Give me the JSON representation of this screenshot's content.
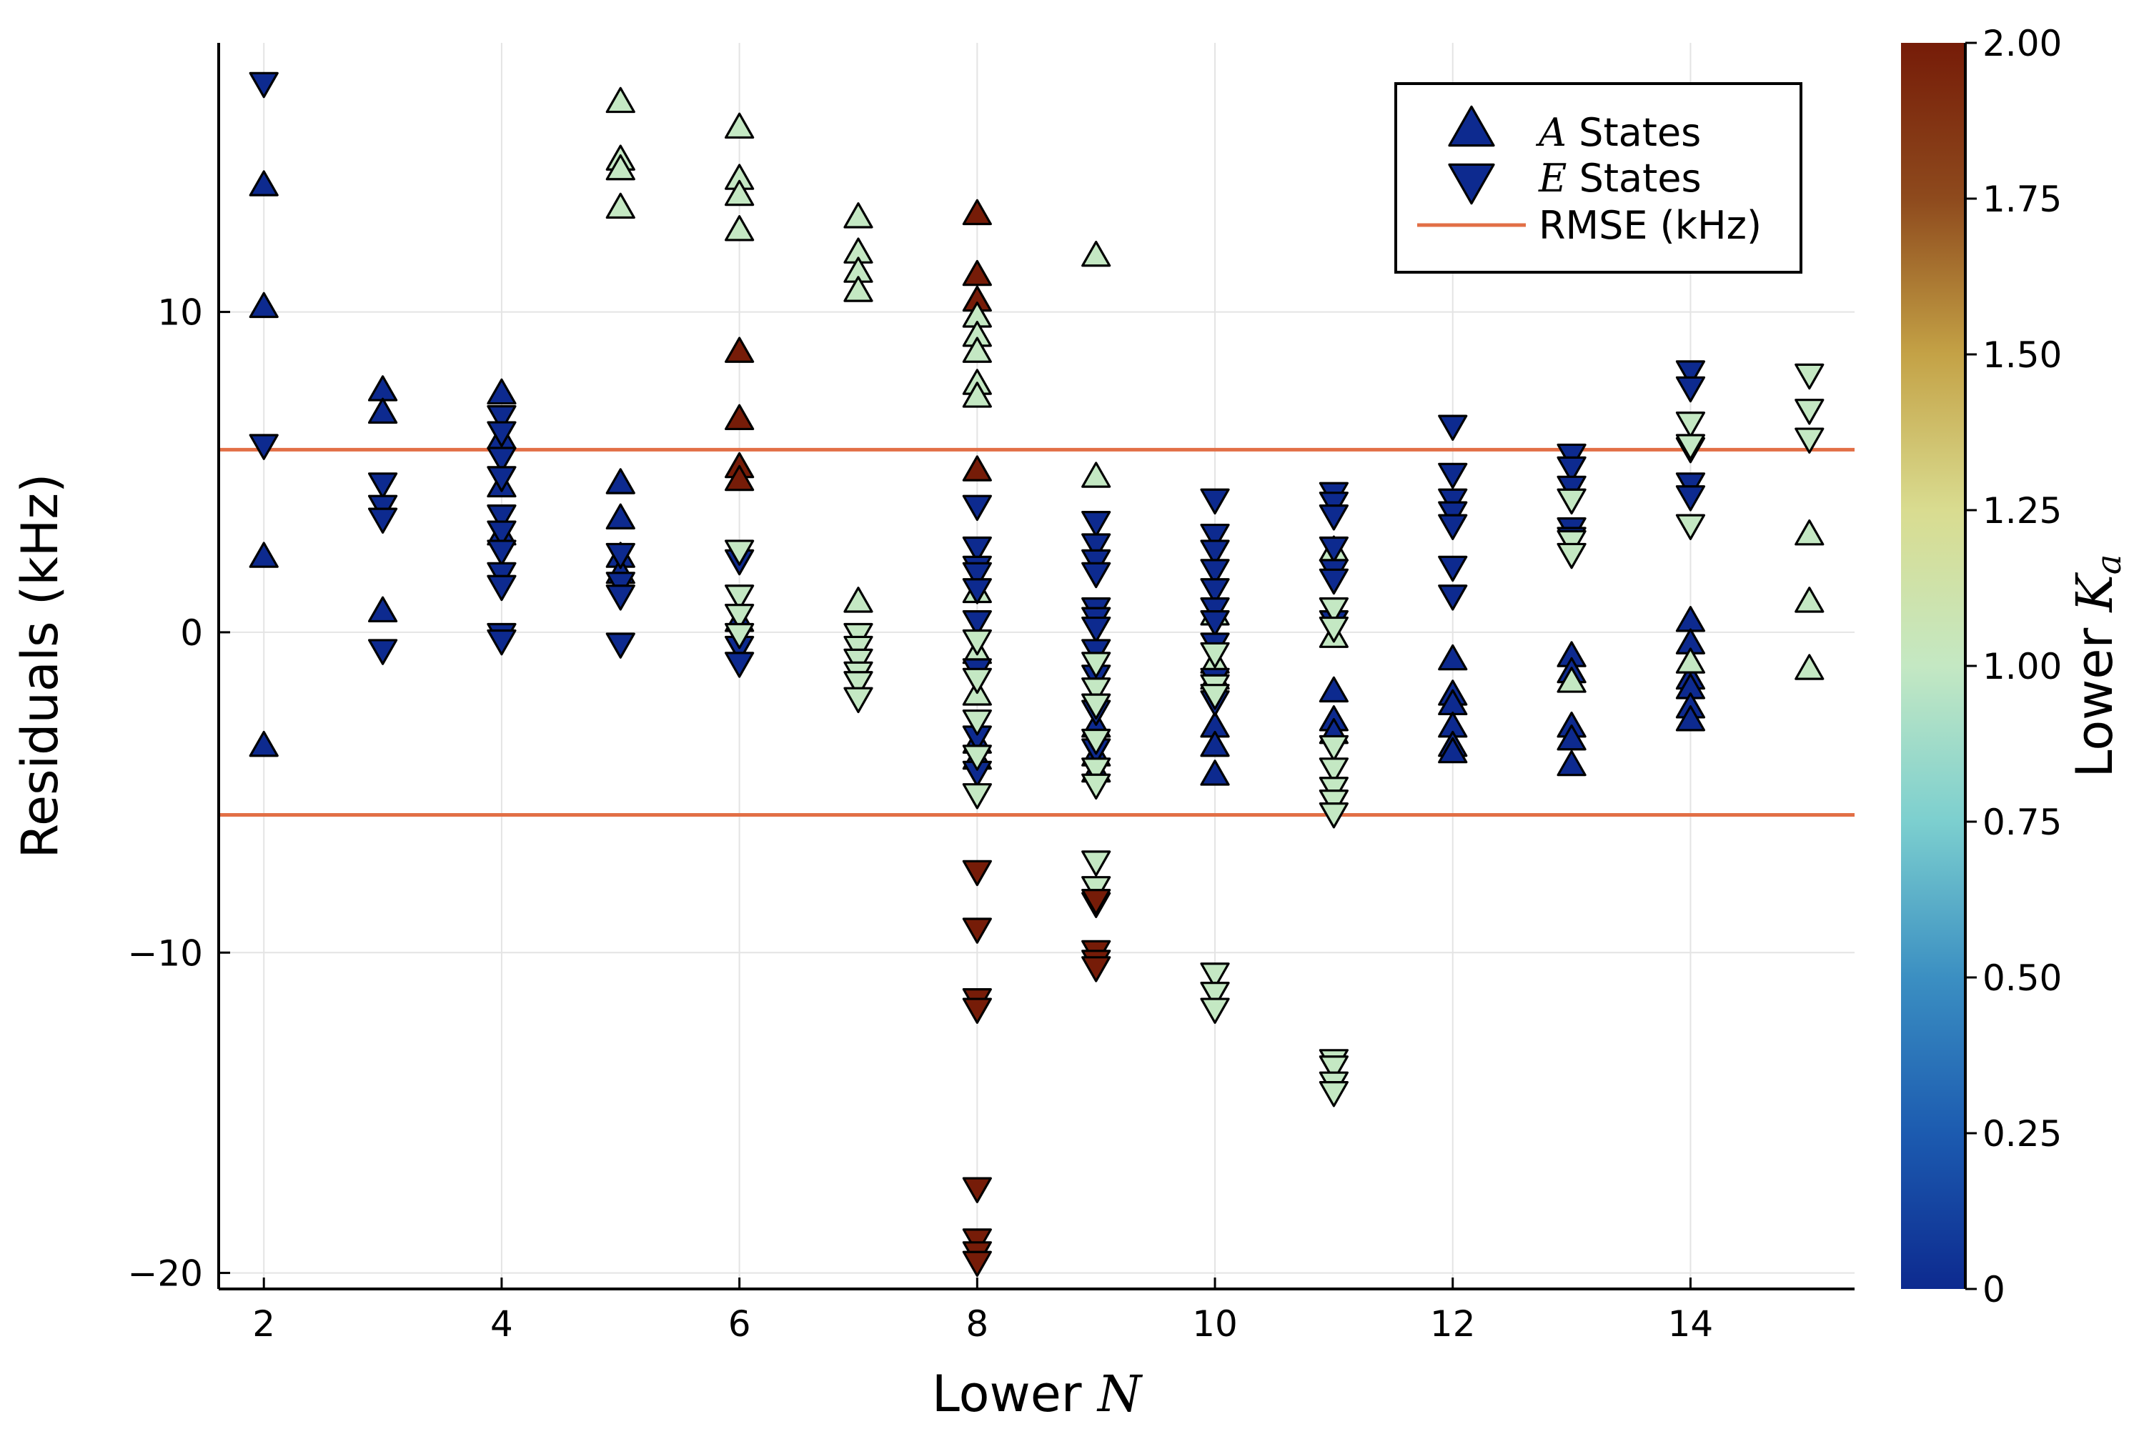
{
  "chart_data": {
    "type": "scatter",
    "xlabel": "Lower",
    "xlabel_var": "N",
    "ylabel": "Residuals (kHz)",
    "xlim": [
      1.62,
      15.38
    ],
    "ylim": [
      -20.5,
      18.4
    ],
    "xticks": [
      2,
      4,
      6,
      8,
      10,
      12,
      14
    ],
    "yticks": [
      -20,
      -10,
      0,
      10
    ],
    "xtick_labels": [
      "2",
      "4",
      "6",
      "8",
      "10",
      "12",
      "14"
    ],
    "ytick_labels": [
      "−20",
      "−10",
      "0",
      "10"
    ],
    "grid": true,
    "legend_position": "top-right",
    "rmse": {
      "label": "RMSE (kHz)",
      "value": 5.7,
      "color": "#e26f46"
    },
    "colorbar": {
      "label": "Lower",
      "label_var": "K",
      "label_sub": "a",
      "range": [
        0,
        2
      ],
      "ticks": [
        0,
        0.25,
        0.5,
        0.75,
        1.0,
        1.25,
        1.5,
        1.75,
        2.0
      ],
      "tick_labels": [
        "0",
        "0.25",
        "0.50",
        "0.75",
        "1.00",
        "1.25",
        "1.50",
        "1.75",
        "2.00"
      ],
      "colors": [
        "#0d2a8f",
        "#1c5bb0",
        "#3b8fc2",
        "#7ccfcf",
        "#c4e8c3",
        "#d9dc90",
        "#c4a246",
        "#8e4a1d",
        "#761c08"
      ]
    },
    "series": [
      {
        "name": "A States",
        "name_var": "A",
        "name_rest": " States",
        "marker": "triangle-up",
        "points": [
          [
            2,
            13.9,
            0
          ],
          [
            2,
            10.1,
            0
          ],
          [
            2,
            2.3,
            0
          ],
          [
            2,
            -3.6,
            0
          ],
          [
            3,
            7.5,
            0
          ],
          [
            3,
            6.8,
            0
          ],
          [
            3,
            0.6,
            0
          ],
          [
            4,
            7.4,
            0
          ],
          [
            4,
            6.0,
            0
          ],
          [
            4,
            4.5,
            0
          ],
          [
            4,
            3.0,
            0
          ],
          [
            5,
            4.6,
            0
          ],
          [
            5,
            3.5,
            0
          ],
          [
            5,
            2.3,
            0
          ],
          [
            5,
            1.8,
            0
          ],
          [
            5,
            16.5,
            1
          ],
          [
            5,
            14.7,
            1
          ],
          [
            5,
            14.4,
            1
          ],
          [
            5,
            13.2,
            1
          ],
          [
            6,
            0.3,
            0
          ],
          [
            6,
            15.7,
            1
          ],
          [
            6,
            14.1,
            1
          ],
          [
            6,
            13.6,
            1
          ],
          [
            6,
            12.5,
            1
          ],
          [
            6,
            8.7,
            2
          ],
          [
            6,
            6.6,
            2
          ],
          [
            6,
            5.1,
            2
          ],
          [
            6,
            4.7,
            2
          ],
          [
            7,
            12.9,
            1
          ],
          [
            7,
            11.8,
            1
          ],
          [
            7,
            11.2,
            1
          ],
          [
            7,
            10.6,
            1
          ],
          [
            7,
            0.9,
            1
          ],
          [
            8,
            13.0,
            2
          ],
          [
            8,
            11.1,
            2
          ],
          [
            8,
            10.3,
            2
          ],
          [
            8,
            5.0,
            2
          ],
          [
            8,
            9.8,
            1
          ],
          [
            8,
            9.2,
            1
          ],
          [
            8,
            8.7,
            1
          ],
          [
            8,
            7.7,
            1
          ],
          [
            8,
            7.3,
            1
          ],
          [
            8,
            1.2,
            1
          ],
          [
            8,
            -0.7,
            1
          ],
          [
            8,
            -2.0,
            1
          ],
          [
            8,
            -3.5,
            0
          ],
          [
            8,
            -4.0,
            0
          ],
          [
            9,
            11.7,
            1
          ],
          [
            9,
            4.8,
            1
          ],
          [
            9,
            -3.0,
            0
          ],
          [
            9,
            -3.9,
            0
          ],
          [
            9,
            -4.4,
            0
          ],
          [
            10,
            -1.5,
            0
          ],
          [
            10,
            -3.0,
            0
          ],
          [
            10,
            -3.6,
            0
          ],
          [
            10,
            -4.5,
            0
          ],
          [
            10,
            0.5,
            1
          ],
          [
            10,
            -1.0,
            1
          ],
          [
            11,
            -1.9,
            0
          ],
          [
            11,
            -2.8,
            0
          ],
          [
            11,
            -3.2,
            0
          ],
          [
            11,
            2.5,
            1
          ],
          [
            11,
            -0.2,
            1
          ],
          [
            12,
            -0.9,
            0
          ],
          [
            12,
            -2.0,
            0
          ],
          [
            12,
            -2.3,
            0
          ],
          [
            12,
            -3.0,
            0
          ],
          [
            12,
            -3.6,
            0
          ],
          [
            12,
            -3.8,
            0
          ],
          [
            13,
            -0.8,
            0
          ],
          [
            13,
            -1.3,
            0
          ],
          [
            13,
            -3.0,
            0
          ],
          [
            13,
            -3.4,
            0
          ],
          [
            13,
            -4.2,
            0
          ],
          [
            13,
            -1.6,
            1
          ],
          [
            14,
            0.3,
            0
          ],
          [
            14,
            -0.4,
            0
          ],
          [
            14,
            -1.5,
            0
          ],
          [
            14,
            -1.8,
            0
          ],
          [
            14,
            -2.4,
            0
          ],
          [
            14,
            -2.8,
            0
          ],
          [
            14,
            -1.0,
            1
          ],
          [
            15,
            3.0,
            1
          ],
          [
            15,
            0.9,
            1
          ],
          [
            15,
            -1.2,
            1
          ]
        ]
      },
      {
        "name": "E States",
        "name_var": "E",
        "name_rest": " States",
        "marker": "triangle-down",
        "points": [
          [
            2,
            17.2,
            0
          ],
          [
            2,
            5.9,
            0
          ],
          [
            3,
            4.7,
            0
          ],
          [
            3,
            4.0,
            0
          ],
          [
            3,
            3.6,
            0
          ],
          [
            3,
            -0.5,
            0
          ],
          [
            4,
            6.8,
            0
          ],
          [
            4,
            6.3,
            0
          ],
          [
            4,
            5.5,
            0
          ],
          [
            4,
            4.9,
            0
          ],
          [
            4,
            3.7,
            0
          ],
          [
            4,
            3.2,
            0
          ],
          [
            4,
            2.6,
            0
          ],
          [
            4,
            1.9,
            0
          ],
          [
            4,
            1.5,
            0
          ],
          [
            4,
            0.0,
            0
          ],
          [
            4,
            -0.2,
            0
          ],
          [
            5,
            2.5,
            0
          ],
          [
            5,
            1.6,
            0
          ],
          [
            5,
            1.2,
            0
          ],
          [
            5,
            -0.3,
            0
          ],
          [
            6,
            2.3,
            0
          ],
          [
            6,
            -0.4,
            0
          ],
          [
            6,
            -0.9,
            0
          ],
          [
            6,
            2.6,
            1
          ],
          [
            6,
            1.2,
            1
          ],
          [
            6,
            0.6,
            1
          ],
          [
            6,
            0.0,
            1
          ],
          [
            7,
            0.0,
            1
          ],
          [
            7,
            -0.4,
            1
          ],
          [
            7,
            -0.8,
            1
          ],
          [
            7,
            -1.2,
            1
          ],
          [
            7,
            -1.5,
            1
          ],
          [
            7,
            -2.0,
            1
          ],
          [
            8,
            4.0,
            0
          ],
          [
            8,
            2.7,
            0
          ],
          [
            8,
            2.1,
            0
          ],
          [
            8,
            1.9,
            0
          ],
          [
            8,
            1.4,
            0
          ],
          [
            8,
            0.4,
            0
          ],
          [
            8,
            -1.1,
            0
          ],
          [
            8,
            -3.2,
            0
          ],
          [
            8,
            -4.3,
            0
          ],
          [
            8,
            -0.2,
            1
          ],
          [
            8,
            -1.4,
            1
          ],
          [
            8,
            -2.7,
            1
          ],
          [
            8,
            -3.8,
            1
          ],
          [
            8,
            -5.0,
            1
          ],
          [
            8,
            -7.4,
            2
          ],
          [
            8,
            -9.2,
            2
          ],
          [
            8,
            -11.4,
            2
          ],
          [
            8,
            -11.7,
            2
          ],
          [
            8,
            -17.3,
            2
          ],
          [
            8,
            -18.9,
            2
          ],
          [
            8,
            -19.3,
            2
          ],
          [
            8,
            -19.6,
            2
          ],
          [
            9,
            3.5,
            0
          ],
          [
            9,
            2.8,
            0
          ],
          [
            9,
            2.3,
            0
          ],
          [
            9,
            1.9,
            0
          ],
          [
            9,
            0.8,
            0
          ],
          [
            9,
            0.5,
            0
          ],
          [
            9,
            0.2,
            0
          ],
          [
            9,
            -0.5,
            0
          ],
          [
            9,
            -1.3,
            0
          ],
          [
            9,
            -2.4,
            0
          ],
          [
            9,
            -3.6,
            0
          ],
          [
            9,
            -0.9,
            1
          ],
          [
            9,
            -1.7,
            1
          ],
          [
            9,
            -2.2,
            1
          ],
          [
            9,
            -3.3,
            1
          ],
          [
            9,
            -4.2,
            1
          ],
          [
            9,
            -4.7,
            1
          ],
          [
            9,
            -7.1,
            1
          ],
          [
            9,
            -7.9,
            1
          ],
          [
            9,
            -8.4,
            1
          ],
          [
            9,
            -8.3,
            2
          ],
          [
            9,
            -9.9,
            2
          ],
          [
            9,
            -10.2,
            2
          ],
          [
            9,
            -10.4,
            2
          ],
          [
            10,
            4.2,
            0
          ],
          [
            10,
            3.1,
            0
          ],
          [
            10,
            2.6,
            0
          ],
          [
            10,
            2.0,
            0
          ],
          [
            10,
            1.4,
            0
          ],
          [
            10,
            0.8,
            0
          ],
          [
            10,
            0.4,
            0
          ],
          [
            10,
            -0.3,
            0
          ],
          [
            10,
            -1.4,
            0
          ],
          [
            10,
            -2.1,
            0
          ],
          [
            10,
            -0.6,
            1
          ],
          [
            10,
            -1.6,
            1
          ],
          [
            10,
            -1.9,
            1
          ],
          [
            10,
            -10.6,
            1
          ],
          [
            10,
            -11.2,
            1
          ],
          [
            10,
            -11.7,
            1
          ],
          [
            11,
            4.4,
            0
          ],
          [
            11,
            4.1,
            0
          ],
          [
            11,
            3.7,
            0
          ],
          [
            11,
            2.7,
            0
          ],
          [
            11,
            2.0,
            0
          ],
          [
            11,
            1.7,
            0
          ],
          [
            11,
            0.4,
            0
          ],
          [
            11,
            0.8,
            1
          ],
          [
            11,
            0.2,
            1
          ],
          [
            11,
            -3.5,
            1
          ],
          [
            11,
            -4.2,
            1
          ],
          [
            11,
            -4.8,
            1
          ],
          [
            11,
            -5.2,
            1
          ],
          [
            11,
            -5.6,
            1
          ],
          [
            11,
            -13.3,
            1
          ],
          [
            11,
            -13.5,
            1
          ],
          [
            11,
            -14.0,
            1
          ],
          [
            11,
            -14.3,
            1
          ],
          [
            12,
            6.5,
            0
          ],
          [
            12,
            5.0,
            0
          ],
          [
            12,
            4.2,
            0
          ],
          [
            12,
            3.8,
            0
          ],
          [
            12,
            3.4,
            0
          ],
          [
            12,
            2.1,
            0
          ],
          [
            12,
            1.2,
            0
          ],
          [
            13,
            5.6,
            0
          ],
          [
            13,
            5.2,
            0
          ],
          [
            13,
            4.6,
            0
          ],
          [
            13,
            3.3,
            0
          ],
          [
            13,
            3.0,
            0
          ],
          [
            13,
            4.2,
            1
          ],
          [
            13,
            2.9,
            1
          ],
          [
            13,
            2.5,
            1
          ],
          [
            14,
            8.2,
            0
          ],
          [
            14,
            7.7,
            0
          ],
          [
            14,
            5.8,
            0
          ],
          [
            14,
            4.7,
            0
          ],
          [
            14,
            4.3,
            0
          ],
          [
            14,
            6.6,
            1
          ],
          [
            14,
            5.9,
            1
          ],
          [
            14,
            3.4,
            1
          ],
          [
            15,
            8.1,
            1
          ],
          [
            15,
            7.0,
            1
          ],
          [
            15,
            6.1,
            1
          ]
        ]
      }
    ]
  }
}
